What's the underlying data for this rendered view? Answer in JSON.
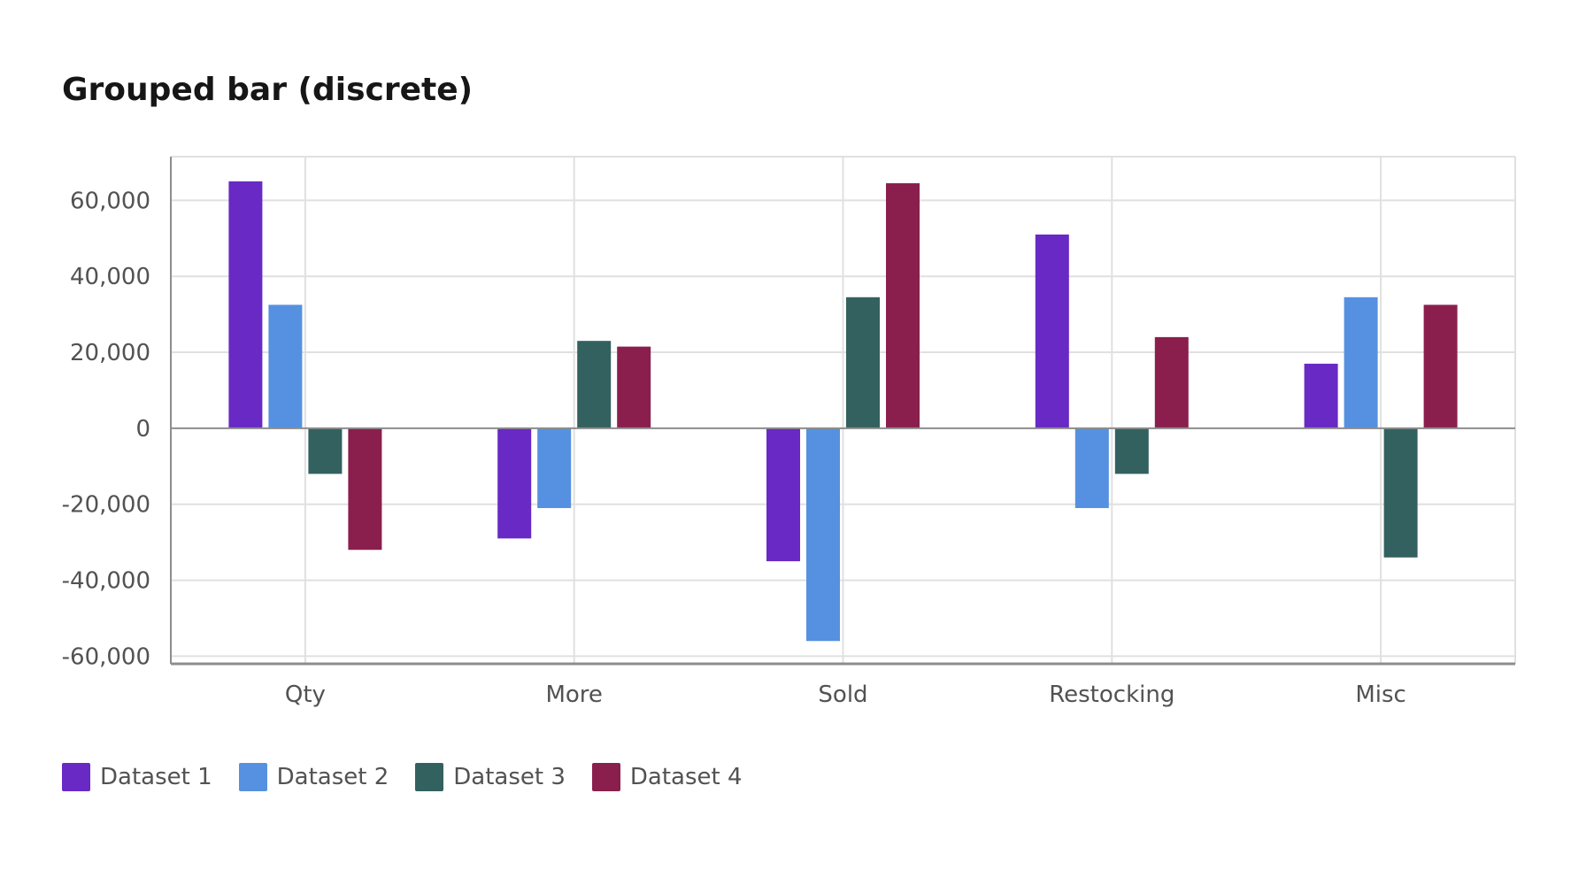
{
  "chart_data": {
    "type": "bar",
    "title": "Grouped bar (discrete)",
    "xlabel": "",
    "ylabel": "",
    "categories": [
      "Qty",
      "More",
      "Sold",
      "Restocking",
      "Misc"
    ],
    "series": [
      {
        "name": "Dataset 1",
        "color": "#6929c4",
        "values": [
          65000,
          -29000,
          -35000,
          51000,
          17000
        ]
      },
      {
        "name": "Dataset 2",
        "color": "#5591e0",
        "values": [
          32500,
          -21000,
          -56000,
          -21000,
          34500
        ]
      },
      {
        "name": "Dataset 3",
        "color": "#33615f",
        "values": [
          -12000,
          23000,
          34500,
          -12000,
          -34000
        ]
      },
      {
        "name": "Dataset 4",
        "color": "#8a1f4e",
        "values": [
          -32000,
          21500,
          64500,
          24000,
          32500
        ]
      }
    ],
    "ylim": [
      -62000,
      71500
    ],
    "yticks": [
      60000,
      40000,
      20000,
      0,
      -20000,
      -40000,
      -60000
    ],
    "ytick_labels": [
      "60,000",
      "40,000",
      "20,000",
      "0",
      "-20,000",
      "-40,000",
      "-60,000"
    ],
    "grid": true,
    "legend_position": "bottom-left"
  }
}
